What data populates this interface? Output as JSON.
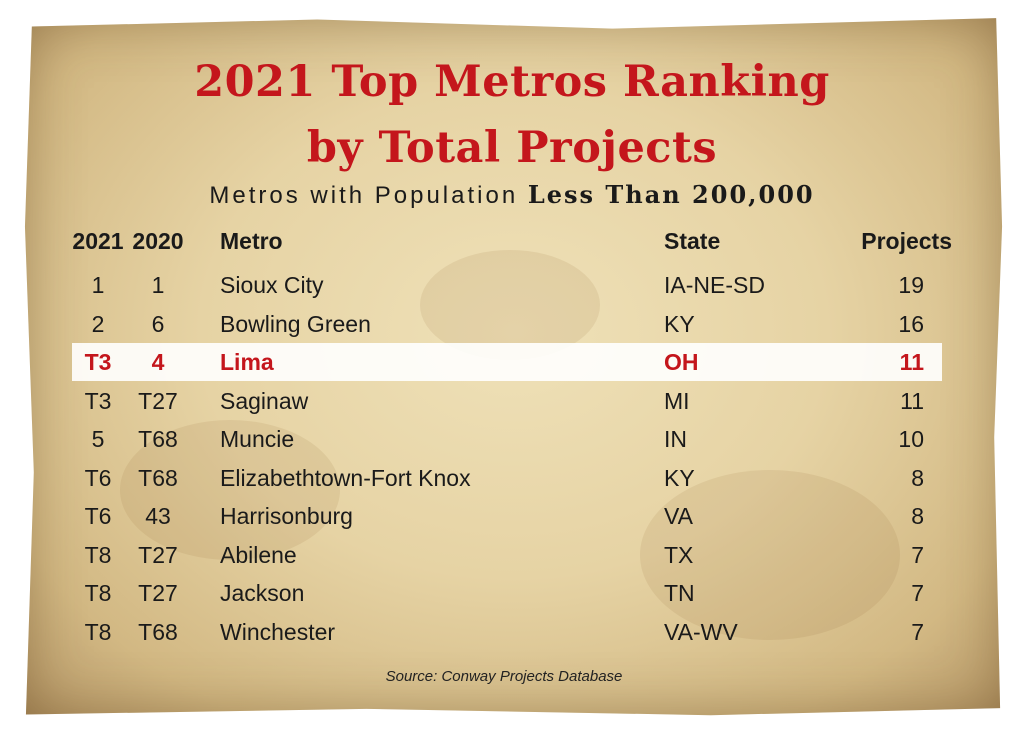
{
  "chart_data": {
    "type": "table",
    "title_line1": "2021 Top Metros Ranking",
    "title_line2": "by Total Projects",
    "subtitle_prefix": "Metros with Population",
    "subtitle_emphasis": "Less Than 200,000",
    "columns": [
      "2021",
      "2020",
      "Metro",
      "State",
      "Projects"
    ],
    "rows": [
      {
        "rank_2021": "1",
        "rank_2020": "1",
        "metro": "Sioux City",
        "state": "IA-NE-SD",
        "projects": 19
      },
      {
        "rank_2021": "2",
        "rank_2020": "6",
        "metro": "Bowling Green",
        "state": "KY",
        "projects": 16
      },
      {
        "rank_2021": "T3",
        "rank_2020": "4",
        "metro": "Lima",
        "state": "OH",
        "projects": 11
      },
      {
        "rank_2021": "T3",
        "rank_2020": "T27",
        "metro": "Saginaw",
        "state": "MI",
        "projects": 11
      },
      {
        "rank_2021": "5",
        "rank_2020": "T68",
        "metro": "Muncie",
        "state": "IN",
        "projects": 10
      },
      {
        "rank_2021": "T6",
        "rank_2020": "T68",
        "metro": "Elizabethtown-Fort Knox",
        "state": "KY",
        "projects": 8
      },
      {
        "rank_2021": "T6",
        "rank_2020": "43",
        "metro": "Harrisonburg",
        "state": "VA",
        "projects": 8
      },
      {
        "rank_2021": "T8",
        "rank_2020": "T27",
        "metro": "Abilene",
        "state": "TX",
        "projects": 7
      },
      {
        "rank_2021": "T8",
        "rank_2020": "T27",
        "metro": "Jackson",
        "state": "TN",
        "projects": 7
      },
      {
        "rank_2021": "T8",
        "rank_2020": "T68",
        "metro": "Winchester",
        "state": "VA-WV",
        "projects": 7
      }
    ],
    "highlighted_metro": "Lima",
    "highlight_color": "#c4161c",
    "source": "Source: Conway Projects Database"
  }
}
